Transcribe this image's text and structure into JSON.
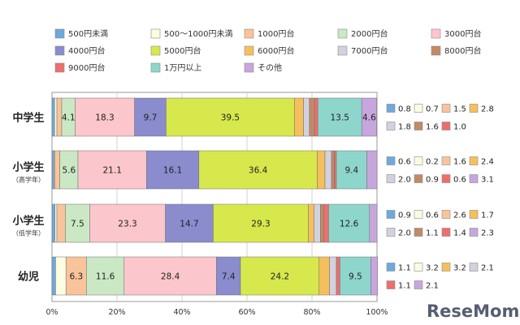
{
  "watermark": "ReseMom",
  "chart_data": {
    "type": "stacked-bar-horizontal",
    "title": "",
    "xlabel": "",
    "ylabel": "",
    "xlim": [
      0,
      100
    ],
    "x_ticks": [
      "0%",
      "20%",
      "40%",
      "60%",
      "80%",
      "100%"
    ],
    "grid": true,
    "legend_position": "top",
    "series": [
      {
        "name": "500円未満",
        "color": "#6fa8dc",
        "values": [
          0.8,
          0.6,
          0.9,
          1.1
        ]
      },
      {
        "name": "500～1000円未満",
        "color": "#fcfce0",
        "values": [
          0.7,
          0.2,
          0.6,
          3.2
        ]
      },
      {
        "name": "1000円台",
        "color": "#f9c49a",
        "values": [
          1.5,
          1.6,
          2.6,
          6.3
        ]
      },
      {
        "name": "2000円台",
        "color": "#cbe8c4",
        "values": [
          4.1,
          5.6,
          7.5,
          11.6
        ]
      },
      {
        "name": "3000円台",
        "color": "#fbc6cc",
        "values": [
          18.3,
          21.1,
          23.3,
          28.4
        ]
      },
      {
        "name": "4000円台",
        "color": "#8a8cce",
        "values": [
          9.7,
          16.1,
          14.7,
          7.4
        ]
      },
      {
        "name": "5000円台",
        "color": "#d7e84c",
        "values": [
          39.5,
          36.4,
          29.3,
          24.2
        ]
      },
      {
        "name": "6000円台",
        "color": "#f5c05c",
        "values": [
          2.8,
          2.4,
          1.7,
          3.2
        ]
      },
      {
        "name": "7000円台",
        "color": "#d2d2de",
        "values": [
          1.8,
          2.0,
          2.0,
          2.1
        ]
      },
      {
        "name": "8000円台",
        "color": "#c08a66",
        "values": [
          1.6,
          0.9,
          1.1,
          0.0
        ]
      },
      {
        "name": "9000円台",
        "color": "#ee6e6e",
        "values": [
          1.0,
          0.6,
          1.4,
          1.1
        ]
      },
      {
        "name": "1万円以上",
        "color": "#8ed6cc",
        "values": [
          13.5,
          9.4,
          12.6,
          9.5
        ]
      },
      {
        "name": "その他",
        "color": "#c7a6dd",
        "values": [
          4.6,
          3.1,
          2.3,
          2.1
        ]
      }
    ],
    "categories": [
      {
        "label": "中学生",
        "sub": ""
      },
      {
        "label": "小学生",
        "sub": "（高学年）"
      },
      {
        "label": "小学生",
        "sub": "（低学年）"
      },
      {
        "label": "幼児",
        "sub": ""
      }
    ],
    "inbar_labels": [
      [
        {
          "s": 3,
          "v": "4.1"
        },
        {
          "s": 4,
          "v": "18.3"
        },
        {
          "s": 5,
          "v": "9.7"
        },
        {
          "s": 6,
          "v": "39.5"
        },
        {
          "s": 11,
          "v": "13.5"
        },
        {
          "s": 12,
          "v": "4.6"
        }
      ],
      [
        {
          "s": 3,
          "v": "5.6"
        },
        {
          "s": 4,
          "v": "21.1"
        },
        {
          "s": 5,
          "v": "16.1"
        },
        {
          "s": 6,
          "v": "36.4"
        },
        {
          "s": 11,
          "v": "9.4"
        }
      ],
      [
        {
          "s": 3,
          "v": "7.5"
        },
        {
          "s": 4,
          "v": "23.3"
        },
        {
          "s": 5,
          "v": "14.7"
        },
        {
          "s": 6,
          "v": "29.3"
        },
        {
          "s": 11,
          "v": "12.6"
        }
      ],
      [
        {
          "s": 2,
          "v": "6.3"
        },
        {
          "s": 3,
          "v": "11.6"
        },
        {
          "s": 4,
          "v": "28.4"
        },
        {
          "s": 5,
          "v": "7.4"
        },
        {
          "s": 6,
          "v": "24.2"
        },
        {
          "s": 11,
          "v": "9.5"
        }
      ]
    ],
    "side_labels": [
      [
        [
          {
            "s": 0,
            "v": "0.8"
          },
          {
            "s": 1,
            "v": "0.7"
          },
          {
            "s": 2,
            "v": "1.5"
          },
          {
            "s": 7,
            "v": "2.8"
          }
        ],
        [
          {
            "s": 8,
            "v": "1.8"
          },
          {
            "s": 9,
            "v": "1.6"
          },
          {
            "s": 10,
            "v": "1.0"
          }
        ]
      ],
      [
        [
          {
            "s": 0,
            "v": "0.6"
          },
          {
            "s": 1,
            "v": "0.2"
          },
          {
            "s": 2,
            "v": "1.6"
          },
          {
            "s": 7,
            "v": "2.4"
          }
        ],
        [
          {
            "s": 8,
            "v": "2.0"
          },
          {
            "s": 9,
            "v": "0.9"
          },
          {
            "s": 10,
            "v": "0.6"
          },
          {
            "s": 12,
            "v": "3.1"
          }
        ]
      ],
      [
        [
          {
            "s": 0,
            "v": "0.9"
          },
          {
            "s": 1,
            "v": "0.6"
          },
          {
            "s": 2,
            "v": "2.6"
          },
          {
            "s": 7,
            "v": "1.7"
          }
        ],
        [
          {
            "s": 8,
            "v": "2.0"
          },
          {
            "s": 9,
            "v": "1.1"
          },
          {
            "s": 10,
            "v": "1.4"
          },
          {
            "s": 12,
            "v": "2.3"
          }
        ]
      ],
      [
        [
          {
            "s": 0,
            "v": "1.1"
          },
          {
            "s": 1,
            "v": "3.2"
          },
          {
            "s": 7,
            "v": "3.2"
          },
          {
            "s": 8,
            "v": "2.1"
          }
        ],
        [
          {
            "s": 10,
            "v": "1.1"
          },
          {
            "s": 12,
            "v": "2.1"
          }
        ]
      ]
    ]
  }
}
